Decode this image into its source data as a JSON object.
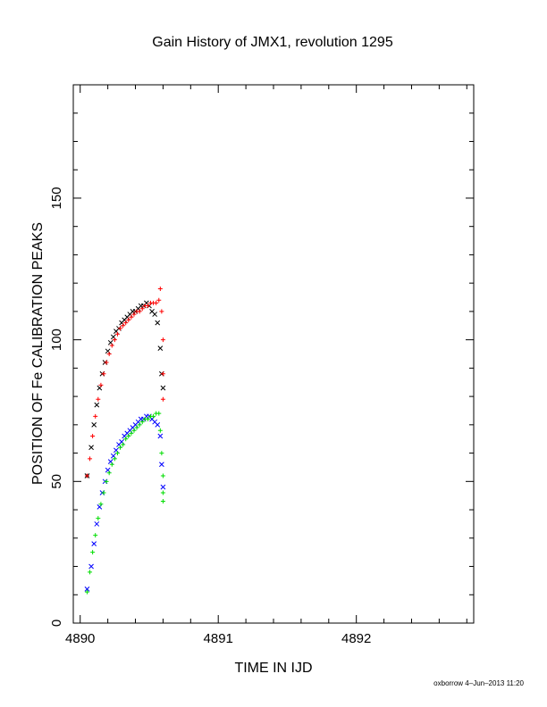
{
  "chart_data": {
    "type": "scatter",
    "title": "Gain History of JMX1, revolution 1295",
    "xlabel": "TIME IN IJD",
    "ylabel": "POSITION OF Fe CALIBRATION PEAKS",
    "xlim": [
      4889.95,
      4892.85
    ],
    "ylim": [
      0,
      190
    ],
    "xticks": [
      {
        "value": 4890,
        "label": "4890"
      },
      {
        "value": 4891,
        "label": "4891"
      },
      {
        "value": 4892,
        "label": "4892"
      }
    ],
    "yticks": [
      {
        "value": 0,
        "label": "0"
      },
      {
        "value": 50,
        "label": "50"
      },
      {
        "value": 100,
        "label": "100"
      },
      {
        "value": 150,
        "label": "150"
      }
    ],
    "grid": false,
    "series": [
      {
        "marker": "x",
        "color": "#000000",
        "x": [
          4890.05,
          4890.08,
          4890.1,
          4890.12,
          4890.14,
          4890.16,
          4890.18,
          4890.2,
          4890.22,
          4890.24,
          4890.26,
          4890.28,
          4890.3,
          4890.32,
          4890.34,
          4890.36,
          4890.38,
          4890.4,
          4890.42,
          4890.44,
          4890.46,
          4890.48,
          4890.5,
          4890.52,
          4890.54,
          4890.56,
          4890.58,
          4890.59,
          4890.6
        ],
        "y": [
          52,
          62,
          70,
          77,
          83,
          88,
          92,
          96,
          99,
          101,
          103,
          104,
          106,
          107,
          108,
          109,
          110,
          110,
          111,
          112,
          112,
          113,
          112,
          110,
          109,
          106,
          97,
          88,
          83
        ]
      },
      {
        "marker": "+",
        "color": "#ff0000",
        "x": [
          4890.05,
          4890.07,
          4890.09,
          4890.11,
          4890.13,
          4890.15,
          4890.17,
          4890.19,
          4890.21,
          4890.23,
          4890.25,
          4890.27,
          4890.29,
          4890.31,
          4890.33,
          4890.35,
          4890.37,
          4890.39,
          4890.41,
          4890.43,
          4890.45,
          4890.47,
          4890.49,
          4890.51,
          4890.53,
          4890.55,
          4890.57,
          4890.58,
          4890.59,
          4890.6,
          4890.6,
          4890.6
        ],
        "y": [
          52,
          58,
          66,
          73,
          79,
          84,
          88,
          92,
          95,
          98,
          100,
          102,
          104,
          105,
          106,
          107,
          108,
          109,
          110,
          110,
          111,
          112,
          112,
          113,
          113,
          113,
          114,
          118,
          110,
          100,
          88,
          79
        ]
      },
      {
        "marker": "x",
        "color": "#0000ff",
        "x": [
          4890.05,
          4890.08,
          4890.1,
          4890.12,
          4890.14,
          4890.16,
          4890.18,
          4890.2,
          4890.22,
          4890.24,
          4890.26,
          4890.28,
          4890.3,
          4890.32,
          4890.34,
          4890.36,
          4890.38,
          4890.4,
          4890.42,
          4890.44,
          4890.46,
          4890.48,
          4890.5,
          4890.52,
          4890.54,
          4890.56,
          4890.58,
          4890.59,
          4890.6
        ],
        "y": [
          12,
          20,
          28,
          35,
          41,
          46,
          50,
          54,
          57,
          59,
          61,
          63,
          64,
          66,
          67,
          68,
          69,
          70,
          71,
          72,
          72,
          73,
          73,
          72,
          71,
          70,
          66,
          56,
          48
        ]
      },
      {
        "marker": "+",
        "color": "#00dd00",
        "x": [
          4890.05,
          4890.07,
          4890.09,
          4890.11,
          4890.13,
          4890.15,
          4890.17,
          4890.19,
          4890.21,
          4890.23,
          4890.25,
          4890.27,
          4890.29,
          4890.31,
          4890.33,
          4890.35,
          4890.37,
          4890.39,
          4890.41,
          4890.43,
          4890.45,
          4890.47,
          4890.49,
          4890.51,
          4890.53,
          4890.55,
          4890.57,
          4890.58,
          4890.59,
          4890.6,
          4890.6,
          4890.6
        ],
        "y": [
          11,
          18,
          25,
          31,
          37,
          42,
          46,
          50,
          53,
          56,
          58,
          60,
          62,
          63,
          65,
          66,
          67,
          68,
          69,
          70,
          71,
          72,
          72,
          73,
          73,
          74,
          74,
          68,
          60,
          52,
          46,
          43
        ]
      }
    ]
  },
  "footer": {
    "stamp": "oxborrow  4–Jun–2013 11:20"
  }
}
